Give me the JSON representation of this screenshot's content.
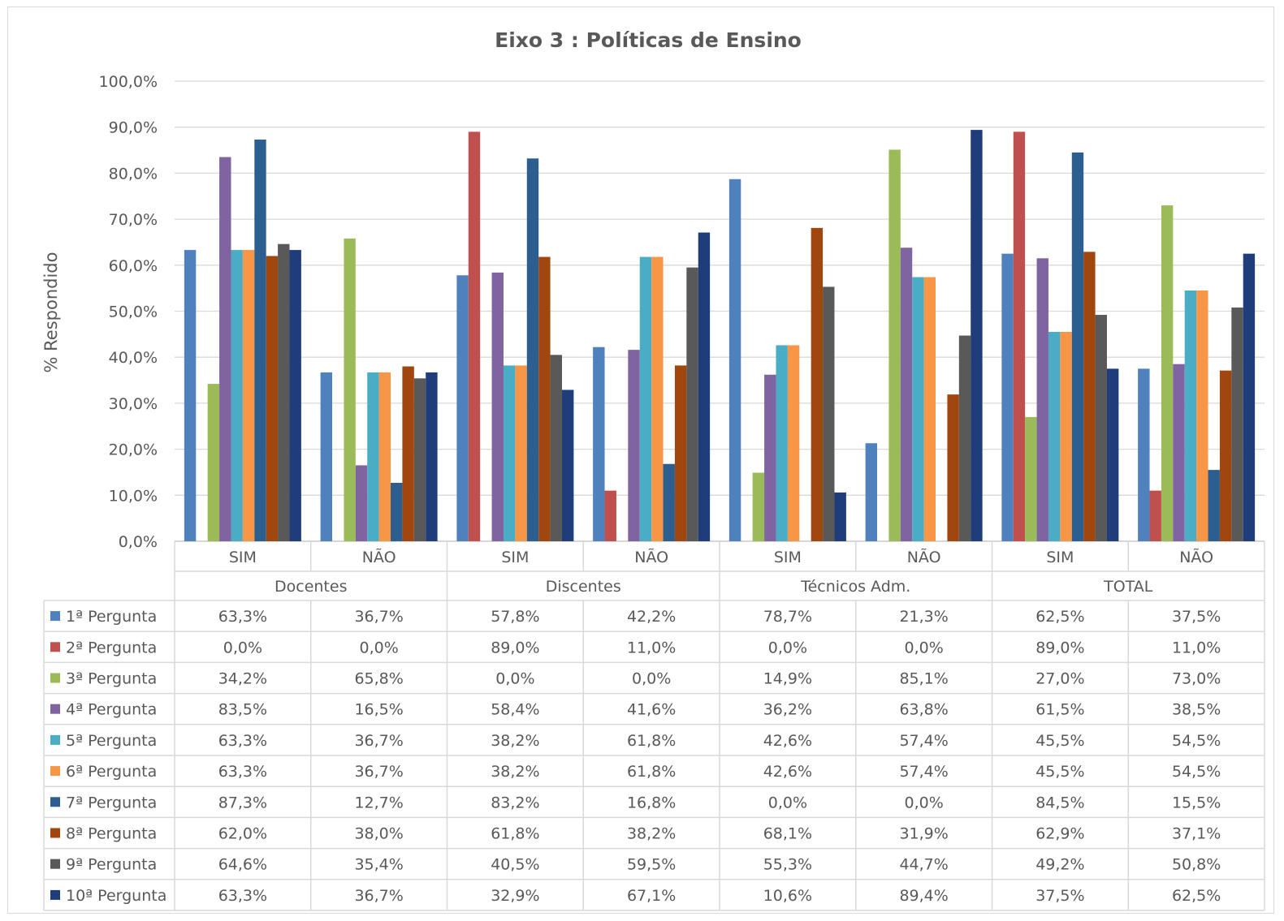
{
  "chart_data": {
    "type": "bar",
    "title": "Eixo 3 : Políticas de Ensino",
    "ylabel": "% Respondido",
    "xlabel": "",
    "ylim": [
      0,
      100
    ],
    "yticks": [
      "0,0%",
      "10,0%",
      "20,0%",
      "30,0%",
      "40,0%",
      "50,0%",
      "60,0%",
      "70,0%",
      "80,0%",
      "90,0%",
      "100,0%"
    ],
    "grid": true,
    "legend": "data-table",
    "groups": [
      "Docentes",
      "Discentes",
      "Técnicos Adm.",
      "TOTAL"
    ],
    "subcategories": [
      "SIM",
      "NÃO"
    ],
    "categories": [
      "Docentes SIM",
      "Docentes NÃO",
      "Discentes SIM",
      "Discentes NÃO",
      "Técnicos Adm. SIM",
      "Técnicos Adm. NÃO",
      "TOTAL SIM",
      "TOTAL NÃO"
    ],
    "series": [
      {
        "name": "1ª Pergunta",
        "color": "#4f81bd",
        "values": [
          63.3,
          36.7,
          57.8,
          42.2,
          78.7,
          21.3,
          62.5,
          37.5
        ],
        "labels": [
          "63,3%",
          "36,7%",
          "57,8%",
          "42,2%",
          "78,7%",
          "21,3%",
          "62,5%",
          "37,5%"
        ]
      },
      {
        "name": "2ª Pergunta",
        "color": "#c0504d",
        "values": [
          0.0,
          0.0,
          89.0,
          11.0,
          0.0,
          0.0,
          89.0,
          11.0
        ],
        "labels": [
          "0,0%",
          "0,0%",
          "89,0%",
          "11,0%",
          "0,0%",
          "0,0%",
          "89,0%",
          "11,0%"
        ]
      },
      {
        "name": "3ª Pergunta",
        "color": "#9bbb59",
        "values": [
          34.2,
          65.8,
          0.0,
          0.0,
          14.9,
          85.1,
          27.0,
          73.0
        ],
        "labels": [
          "34,2%",
          "65,8%",
          "0,0%",
          "0,0%",
          "14,9%",
          "85,1%",
          "27,0%",
          "73,0%"
        ]
      },
      {
        "name": "4ª Pergunta",
        "color": "#8064a2",
        "values": [
          83.5,
          16.5,
          58.4,
          41.6,
          36.2,
          63.8,
          61.5,
          38.5
        ],
        "labels": [
          "83,5%",
          "16,5%",
          "58,4%",
          "41,6%",
          "36,2%",
          "63,8%",
          "61,5%",
          "38,5%"
        ]
      },
      {
        "name": "5ª Pergunta",
        "color": "#4bacc6",
        "values": [
          63.3,
          36.7,
          38.2,
          61.8,
          42.6,
          57.4,
          45.5,
          54.5
        ],
        "labels": [
          "63,3%",
          "36,7%",
          "38,2%",
          "61,8%",
          "42,6%",
          "57,4%",
          "45,5%",
          "54,5%"
        ]
      },
      {
        "name": "6ª Pergunta",
        "color": "#f79646",
        "values": [
          63.3,
          36.7,
          38.2,
          61.8,
          42.6,
          57.4,
          45.5,
          54.5
        ],
        "labels": [
          "63,3%",
          "36,7%",
          "38,2%",
          "61,8%",
          "42,6%",
          "57,4%",
          "45,5%",
          "54,5%"
        ]
      },
      {
        "name": "7ª Pergunta",
        "color": "#2c5f8f",
        "values": [
          87.3,
          12.7,
          83.2,
          16.8,
          0.0,
          0.0,
          84.5,
          15.5
        ],
        "labels": [
          "87,3%",
          "12,7%",
          "83,2%",
          "16,8%",
          "0,0%",
          "0,0%",
          "84,5%",
          "15,5%"
        ]
      },
      {
        "name": "8ª Pergunta",
        "color": "#a0460f",
        "values": [
          62.0,
          38.0,
          61.8,
          38.2,
          68.1,
          31.9,
          62.9,
          37.1
        ],
        "labels": [
          "62,0%",
          "38,0%",
          "61,8%",
          "38,2%",
          "68,1%",
          "31,9%",
          "62,9%",
          "37,1%"
        ]
      },
      {
        "name": "9ª Pergunta",
        "color": "#595959",
        "values": [
          64.6,
          35.4,
          40.5,
          59.5,
          55.3,
          44.7,
          49.2,
          50.8
        ],
        "labels": [
          "64,6%",
          "35,4%",
          "40,5%",
          "59,5%",
          "55,3%",
          "44,7%",
          "49,2%",
          "50,8%"
        ]
      },
      {
        "name": "10ª Pergunta",
        "color": "#1f3d7a",
        "values": [
          63.3,
          36.7,
          32.9,
          67.1,
          10.6,
          89.4,
          37.5,
          62.5
        ],
        "labels": [
          "63,3%",
          "36,7%",
          "32,9%",
          "67,1%",
          "10,6%",
          "89,4%",
          "37,5%",
          "62,5%"
        ]
      }
    ]
  }
}
